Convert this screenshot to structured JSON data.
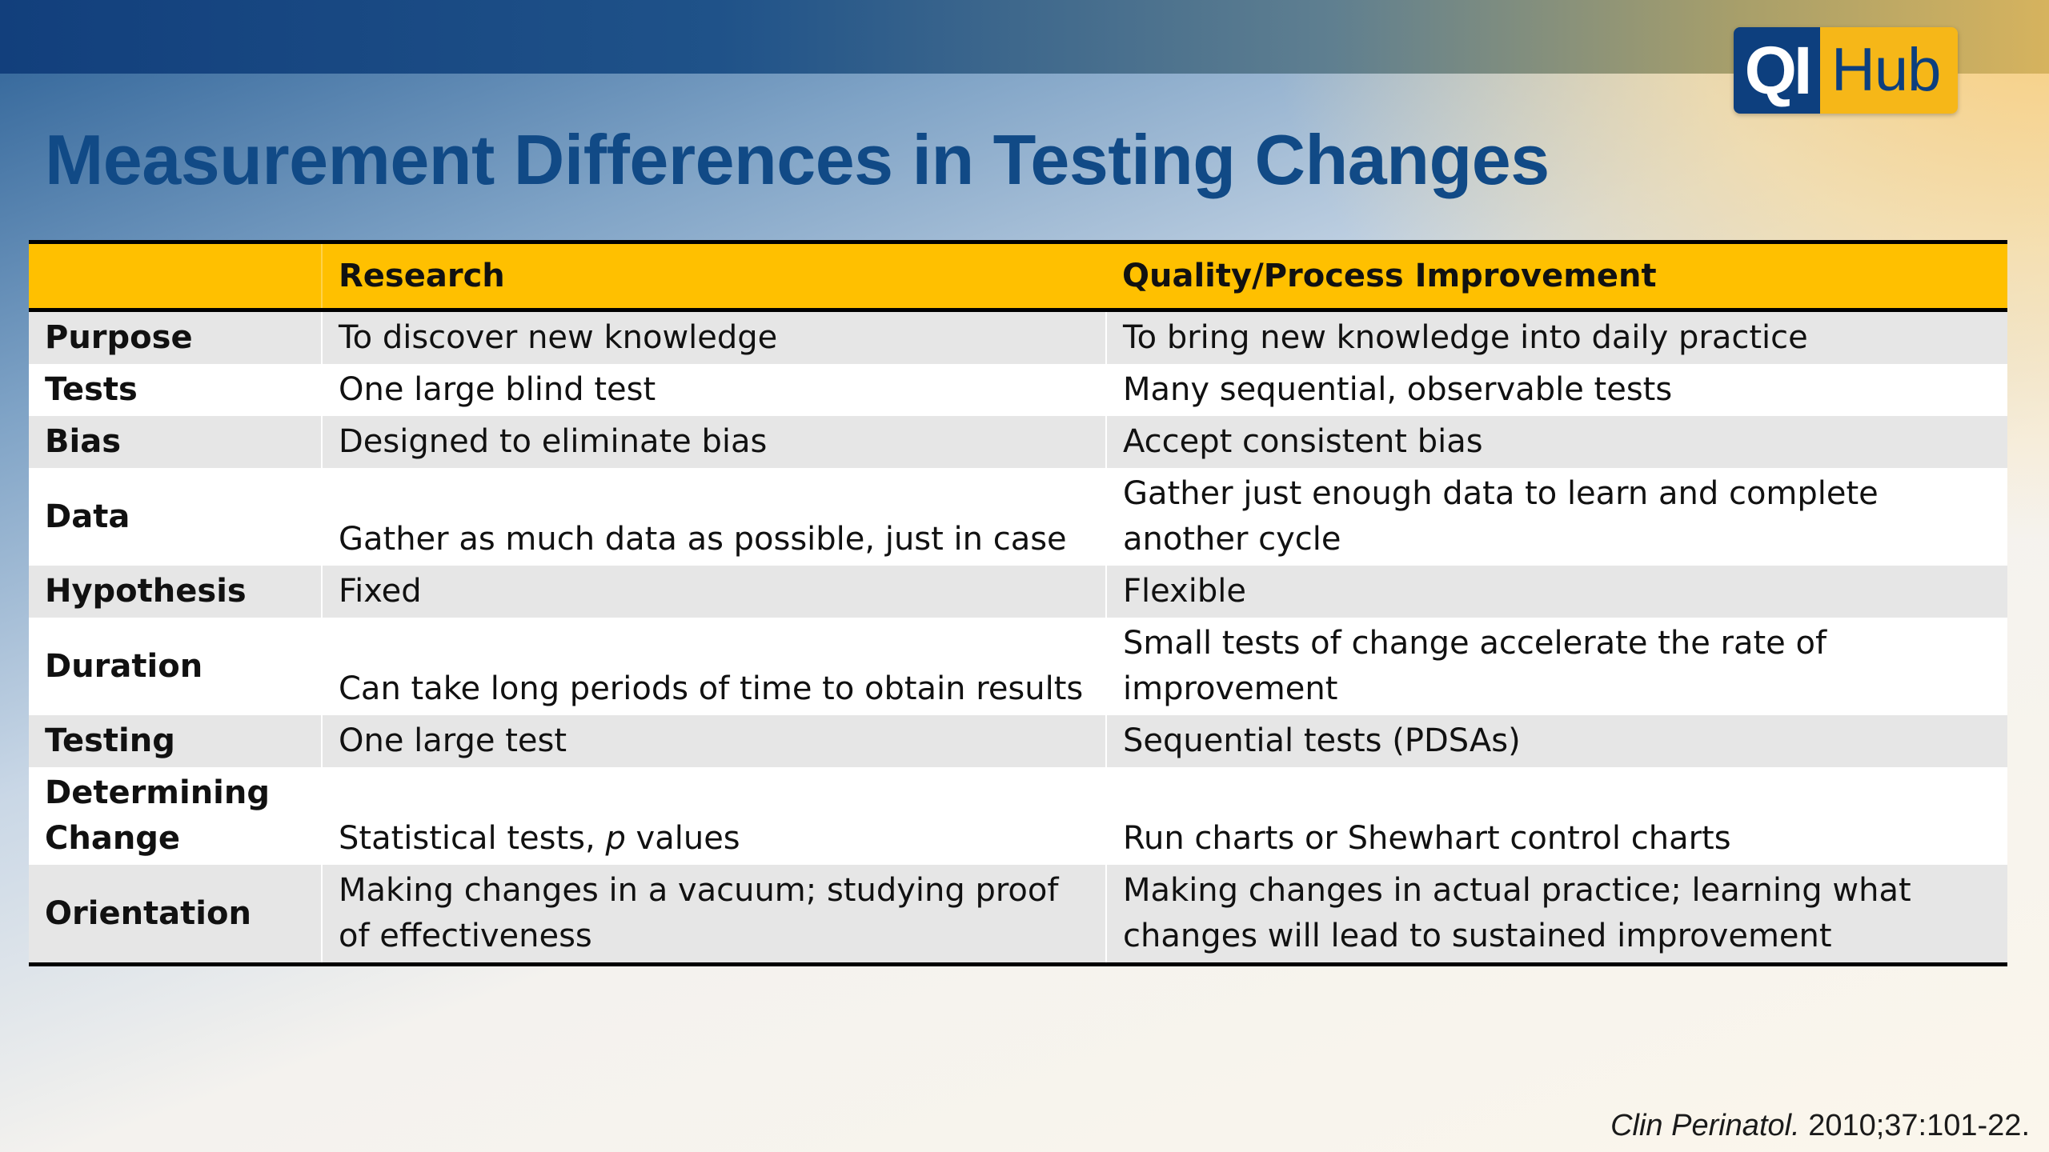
{
  "logo": {
    "left_text": "QI",
    "right_text": "Hub"
  },
  "title": "Measurement Differences in Testing Changes",
  "table": {
    "headers": [
      "",
      "Research",
      "Quality/Process Improvement"
    ],
    "rows": [
      {
        "label": "Purpose",
        "research": "To discover new knowledge",
        "qi": "To bring new knowledge into daily practice"
      },
      {
        "label": "Tests",
        "research": "One large blind test",
        "qi": "Many sequential, observable tests"
      },
      {
        "label": "Bias",
        "research": "Designed to eliminate bias",
        "qi": "Accept consistent bias"
      },
      {
        "label": "Data",
        "research": "Gather as much data as possible, just in case",
        "qi": "Gather just enough data to learn and complete another cycle"
      },
      {
        "label": "Hypothesis",
        "research": "Fixed",
        "qi": "Flexible"
      },
      {
        "label": "Duration",
        "research": "Can take long periods of time to obtain results",
        "qi": "Small tests of change accelerate the rate of improvement"
      },
      {
        "label": "Testing",
        "research": "One large test",
        "qi": "Sequential tests (PDSAs)"
      },
      {
        "label": "Determining Change",
        "research_prefix": "Statistical tests, ",
        "research_italic": "p",
        "research_suffix": " values",
        "qi": "Run charts or Shewhart control charts"
      },
      {
        "label": "Orientation",
        "research": "Making changes in a vacuum; studying proof of effectiveness",
        "qi": "Making changes in actual practice; learning what changes will lead to sustained improvement"
      }
    ]
  },
  "citation": {
    "journal": "Clin Perinatol.",
    "reference": " 2010;37:101-22."
  },
  "colors": {
    "title": "#114a86",
    "header_fill": "#ffc000",
    "row_shade": "#e6e6e6",
    "logo_blue": "#0d3f7e",
    "logo_gold": "#f6b718"
  }
}
